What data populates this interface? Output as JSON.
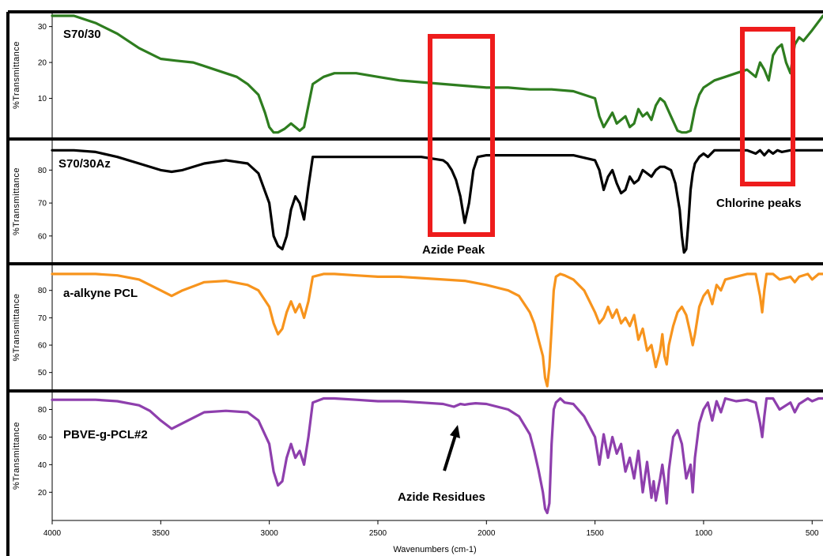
{
  "chart_data": {
    "type": "line",
    "xlabel": "Wavenumbers (cm-1)",
    "x_ticks": [
      4000,
      3500,
      3000,
      2500,
      2000,
      1500,
      1000,
      500
    ],
    "xlim": [
      4000,
      450
    ],
    "panels": [
      {
        "label": "S70/30",
        "ylabel": "%Transmittance",
        "color": "#2e7d1f",
        "yticks": [
          10,
          20,
          30
        ],
        "ylim": [
          0,
          33
        ],
        "x": [
          4000,
          3900,
          3800,
          3700,
          3600,
          3500,
          3430,
          3350,
          3250,
          3150,
          3100,
          3050,
          3020,
          3000,
          2980,
          2960,
          2930,
          2900,
          2880,
          2860,
          2840,
          2820,
          2800,
          2750,
          2700,
          2600,
          2500,
          2400,
          2300,
          2200,
          2100,
          2000,
          1900,
          1800,
          1700,
          1600,
          1500,
          1480,
          1460,
          1440,
          1420,
          1400,
          1380,
          1360,
          1340,
          1320,
          1300,
          1280,
          1260,
          1240,
          1220,
          1200,
          1180,
          1150,
          1120,
          1100,
          1080,
          1060,
          1040,
          1020,
          1000,
          950,
          900,
          850,
          800,
          760,
          740,
          720,
          700,
          680,
          660,
          640,
          620,
          600,
          580,
          560,
          540,
          500,
          450
        ],
        "values": [
          33,
          33,
          31,
          28,
          24,
          21,
          20.5,
          20,
          18,
          16,
          14,
          11,
          6,
          2,
          0.5,
          0.5,
          1.5,
          3,
          2,
          1,
          2,
          8,
          14,
          16,
          17,
          17,
          16,
          15,
          14.5,
          14,
          13.5,
          13,
          13,
          12.5,
          12.5,
          12,
          10,
          5,
          2,
          4,
          6,
          3,
          4,
          5,
          2,
          3,
          7,
          5,
          6,
          4,
          8,
          10,
          9,
          5,
          1,
          0.5,
          0.5,
          1,
          7,
          11,
          13,
          15,
          16,
          17,
          18,
          16,
          20,
          18,
          15,
          22,
          24,
          25,
          20,
          17,
          25,
          27,
          26,
          29,
          33
        ]
      },
      {
        "label": "S70/30Az",
        "ylabel": "%Transmittance",
        "color": "#000000",
        "yticks": [
          60,
          70,
          80
        ],
        "ylim": [
          53,
          88
        ],
        "x": [
          4000,
          3900,
          3800,
          3700,
          3600,
          3500,
          3450,
          3400,
          3300,
          3200,
          3100,
          3050,
          3000,
          2980,
          2960,
          2940,
          2920,
          2900,
          2880,
          2860,
          2840,
          2820,
          2800,
          2750,
          2700,
          2600,
          2500,
          2400,
          2300,
          2250,
          2200,
          2180,
          2160,
          2140,
          2120,
          2100,
          2080,
          2060,
          2040,
          2000,
          1900,
          1800,
          1700,
          1600,
          1500,
          1480,
          1460,
          1440,
          1420,
          1400,
          1380,
          1360,
          1340,
          1320,
          1300,
          1280,
          1260,
          1240,
          1220,
          1200,
          1180,
          1150,
          1130,
          1110,
          1100,
          1090,
          1080,
          1070,
          1060,
          1050,
          1040,
          1020,
          1000,
          980,
          950,
          900,
          850,
          800,
          760,
          740,
          720,
          700,
          680,
          660,
          640,
          600,
          550,
          500,
          450
        ],
        "values": [
          86,
          86,
          85.5,
          84,
          82,
          80,
          79.5,
          80,
          82,
          83,
          82,
          79,
          70,
          60,
          57,
          56,
          60,
          68,
          72,
          70,
          65,
          75,
          84,
          84,
          84,
          84,
          84,
          84,
          84,
          83.5,
          83,
          82,
          80,
          77,
          72,
          64,
          70,
          80,
          84,
          84.5,
          84.5,
          84.5,
          84.5,
          84.5,
          83,
          80,
          74,
          78,
          80,
          76,
          73,
          74,
          78,
          76,
          77,
          80,
          79,
          78,
          80,
          81,
          81,
          80,
          76,
          68,
          60,
          55,
          56,
          64,
          74,
          79,
          82,
          84,
          85,
          84,
          86,
          86,
          86,
          86,
          85,
          86,
          84.5,
          86,
          85,
          86,
          85.5,
          86,
          86,
          86,
          86
        ]
      },
      {
        "label": "a-alkyne PCL",
        "ylabel": "%Transmittance",
        "color": "#f7941d",
        "yticks": [
          50,
          60,
          70,
          80
        ],
        "ylim": [
          45,
          88
        ],
        "x": [
          4000,
          3900,
          3800,
          3700,
          3600,
          3550,
          3500,
          3450,
          3400,
          3300,
          3200,
          3100,
          3050,
          3000,
          2980,
          2960,
          2940,
          2920,
          2900,
          2880,
          2860,
          2840,
          2820,
          2800,
          2750,
          2700,
          2600,
          2500,
          2400,
          2300,
          2200,
          2100,
          2000,
          1900,
          1850,
          1800,
          1780,
          1760,
          1740,
          1730,
          1720,
          1710,
          1700,
          1690,
          1680,
          1660,
          1640,
          1600,
          1550,
          1500,
          1480,
          1460,
          1440,
          1420,
          1400,
          1380,
          1360,
          1340,
          1320,
          1300,
          1280,
          1260,
          1240,
          1230,
          1220,
          1200,
          1190,
          1180,
          1170,
          1160,
          1140,
          1120,
          1100,
          1080,
          1060,
          1050,
          1040,
          1020,
          1000,
          980,
          960,
          940,
          920,
          900,
          850,
          800,
          760,
          740,
          730,
          720,
          710,
          700,
          680,
          650,
          600,
          580,
          560,
          520,
          500,
          470,
          450
        ],
        "values": [
          86,
          86,
          86,
          85.5,
          84,
          82,
          80,
          78,
          80,
          83,
          83.5,
          82,
          80,
          74,
          68,
          64,
          66,
          72,
          76,
          72,
          75,
          70,
          76,
          85,
          86,
          86,
          85.5,
          85,
          85,
          84.5,
          84,
          83.5,
          82,
          80,
          78,
          72,
          68,
          62,
          56,
          48,
          45,
          52,
          66,
          80,
          85,
          86,
          85.5,
          84,
          80,
          72,
          68,
          70,
          74,
          70,
          73,
          68,
          70,
          67,
          71,
          62,
          66,
          58,
          60,
          56,
          52,
          58,
          64,
          56,
          53,
          60,
          67,
          72,
          74,
          71,
          64,
          60,
          64,
          74,
          78,
          80,
          75,
          82,
          80,
          84,
          85,
          86,
          86,
          78,
          72,
          80,
          86,
          86,
          86,
          84,
          85,
          83,
          85,
          86,
          84,
          86,
          86
        ]
      },
      {
        "label": "PBVE-g-PCL#2",
        "ylabel": "%Transmittance",
        "color": "#8e3fad",
        "yticks": [
          20,
          40,
          60,
          80
        ],
        "ylim": [
          3,
          90
        ],
        "x": [
          4000,
          3900,
          3800,
          3700,
          3600,
          3550,
          3500,
          3450,
          3400,
          3300,
          3200,
          3100,
          3050,
          3000,
          2980,
          2960,
          2940,
          2920,
          2900,
          2880,
          2860,
          2840,
          2820,
          2800,
          2750,
          2700,
          2600,
          2500,
          2400,
          2300,
          2200,
          2150,
          2120,
          2100,
          2080,
          2050,
          2000,
          1900,
          1850,
          1800,
          1780,
          1760,
          1740,
          1730,
          1720,
          1710,
          1700,
          1690,
          1680,
          1660,
          1640,
          1600,
          1550,
          1500,
          1480,
          1460,
          1440,
          1420,
          1400,
          1380,
          1360,
          1340,
          1320,
          1300,
          1280,
          1260,
          1240,
          1230,
          1220,
          1200,
          1190,
          1180,
          1170,
          1160,
          1140,
          1120,
          1100,
          1080,
          1060,
          1050,
          1040,
          1020,
          1000,
          980,
          960,
          940,
          920,
          900,
          850,
          800,
          760,
          740,
          730,
          720,
          710,
          700,
          680,
          650,
          600,
          580,
          560,
          520,
          500,
          470,
          450
        ],
        "values": [
          87,
          87,
          87,
          86,
          83,
          79,
          72,
          66,
          70,
          78,
          79,
          78,
          72,
          55,
          35,
          25,
          28,
          45,
          55,
          45,
          50,
          40,
          60,
          85,
          88,
          88,
          87,
          86,
          86,
          85,
          84,
          82,
          84,
          83.5,
          84,
          84.5,
          84,
          80,
          75,
          62,
          50,
          36,
          20,
          8,
          5,
          12,
          55,
          80,
          85,
          88,
          85,
          84,
          75,
          60,
          40,
          62,
          45,
          60,
          48,
          55,
          35,
          45,
          30,
          50,
          20,
          42,
          16,
          28,
          14,
          30,
          40,
          28,
          12,
          36,
          60,
          65,
          55,
          30,
          40,
          20,
          45,
          70,
          80,
          85,
          72,
          86,
          78,
          88,
          86,
          87,
          85,
          70,
          60,
          75,
          88,
          88,
          88,
          80,
          85,
          78,
          84,
          88,
          86,
          88,
          88
        ]
      }
    ],
    "annotations": {
      "azide_peak": "Azide Peak",
      "chlorine_peaks": "Chlorine peaks",
      "azide_residues": "Azide Residues"
    }
  }
}
